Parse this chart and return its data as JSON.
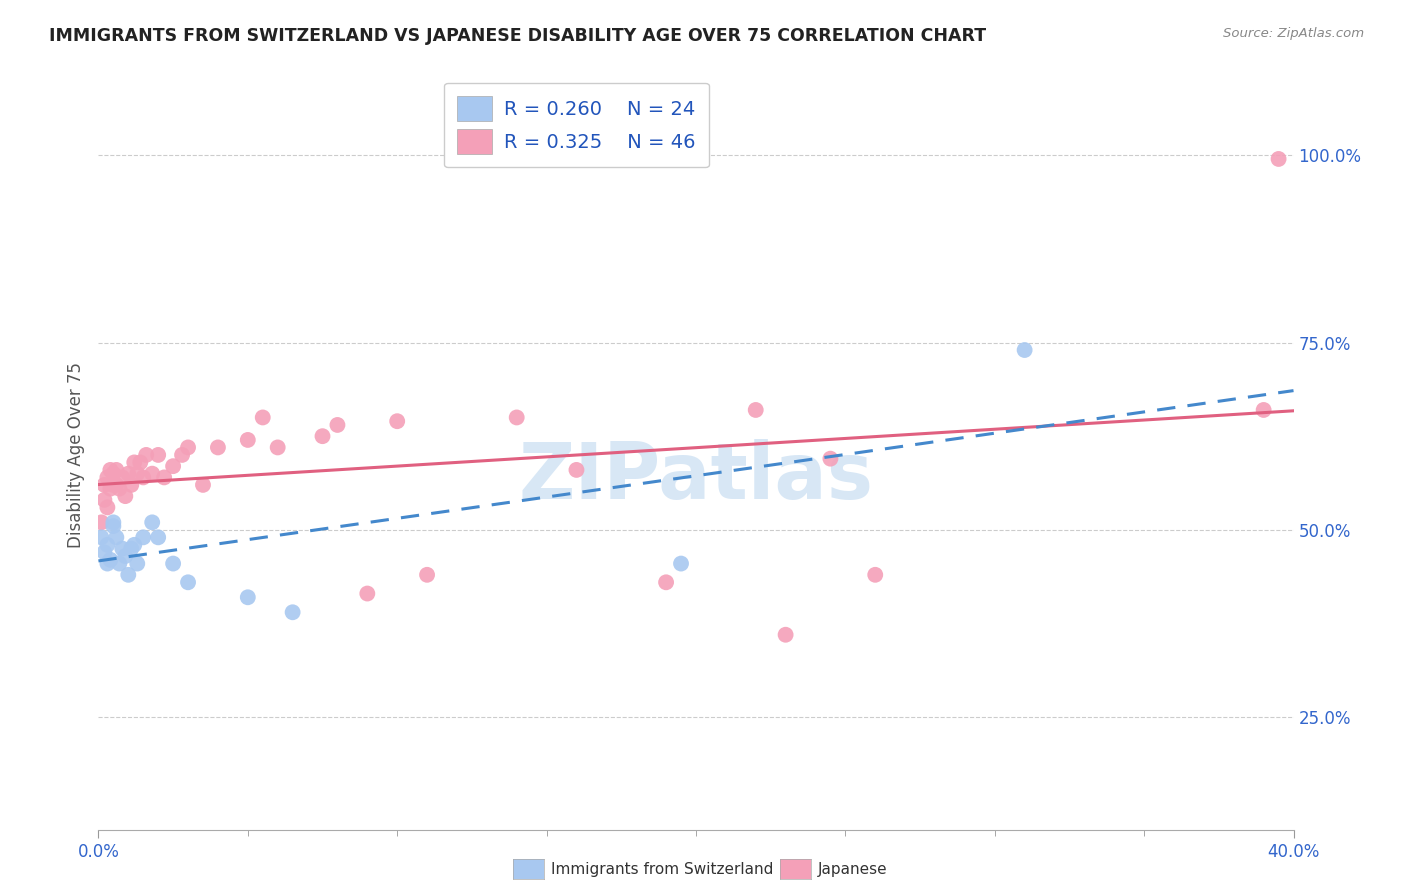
{
  "title": "IMMIGRANTS FROM SWITZERLAND VS JAPANESE DISABILITY AGE OVER 75 CORRELATION CHART",
  "source": "Source: ZipAtlas.com",
  "ylabel": "Disability Age Over 75",
  "ytick_vals": [
    0.25,
    0.5,
    0.75,
    1.0
  ],
  "ytick_labels": [
    "25.0%",
    "50.0%",
    "75.0%",
    "100.0%"
  ],
  "legend_label_1": "Immigrants from Switzerland",
  "legend_label_2": "Japanese",
  "legend_r1": "R = 0.260",
  "legend_n1": "N = 24",
  "legend_r2": "R = 0.325",
  "legend_n2": "N = 46",
  "color_swiss": "#a8c8f0",
  "color_japanese": "#f4a0b8",
  "trendline_swiss_color": "#4488cc",
  "trendline_japanese_color": "#e06080",
  "background_color": "#ffffff",
  "swiss_x": [
    0.001,
    0.002,
    0.003,
    0.003,
    0.004,
    0.005,
    0.005,
    0.006,
    0.007,
    0.008,
    0.009,
    0.01,
    0.011,
    0.012,
    0.013,
    0.015,
    0.018,
    0.02,
    0.025,
    0.03,
    0.05,
    0.065,
    0.195,
    0.31
  ],
  "swiss_y": [
    0.49,
    0.47,
    0.455,
    0.48,
    0.46,
    0.505,
    0.51,
    0.49,
    0.455,
    0.475,
    0.465,
    0.44,
    0.475,
    0.48,
    0.455,
    0.49,
    0.51,
    0.49,
    0.455,
    0.43,
    0.41,
    0.39,
    0.455,
    0.74
  ],
  "japanese_x": [
    0.001,
    0.002,
    0.002,
    0.003,
    0.003,
    0.004,
    0.004,
    0.005,
    0.005,
    0.006,
    0.006,
    0.007,
    0.008,
    0.009,
    0.01,
    0.011,
    0.012,
    0.013,
    0.014,
    0.015,
    0.016,
    0.018,
    0.02,
    0.022,
    0.025,
    0.028,
    0.03,
    0.035,
    0.04,
    0.05,
    0.055,
    0.06,
    0.075,
    0.08,
    0.09,
    0.1,
    0.11,
    0.14,
    0.16,
    0.19,
    0.22,
    0.23,
    0.245,
    0.26,
    0.39,
    0.395
  ],
  "japanese_y": [
    0.51,
    0.54,
    0.56,
    0.53,
    0.57,
    0.555,
    0.58,
    0.56,
    0.575,
    0.56,
    0.58,
    0.555,
    0.57,
    0.545,
    0.575,
    0.56,
    0.59,
    0.575,
    0.59,
    0.57,
    0.6,
    0.575,
    0.6,
    0.57,
    0.585,
    0.6,
    0.61,
    0.56,
    0.61,
    0.62,
    0.65,
    0.61,
    0.625,
    0.64,
    0.415,
    0.645,
    0.44,
    0.65,
    0.58,
    0.43,
    0.66,
    0.36,
    0.595,
    0.44,
    0.66,
    0.995
  ],
  "xlim": [
    0.0,
    0.4
  ],
  "ylim": [
    0.1,
    1.1
  ],
  "watermark": "ZIPatlas",
  "watermark_color": "#b8d4ee"
}
